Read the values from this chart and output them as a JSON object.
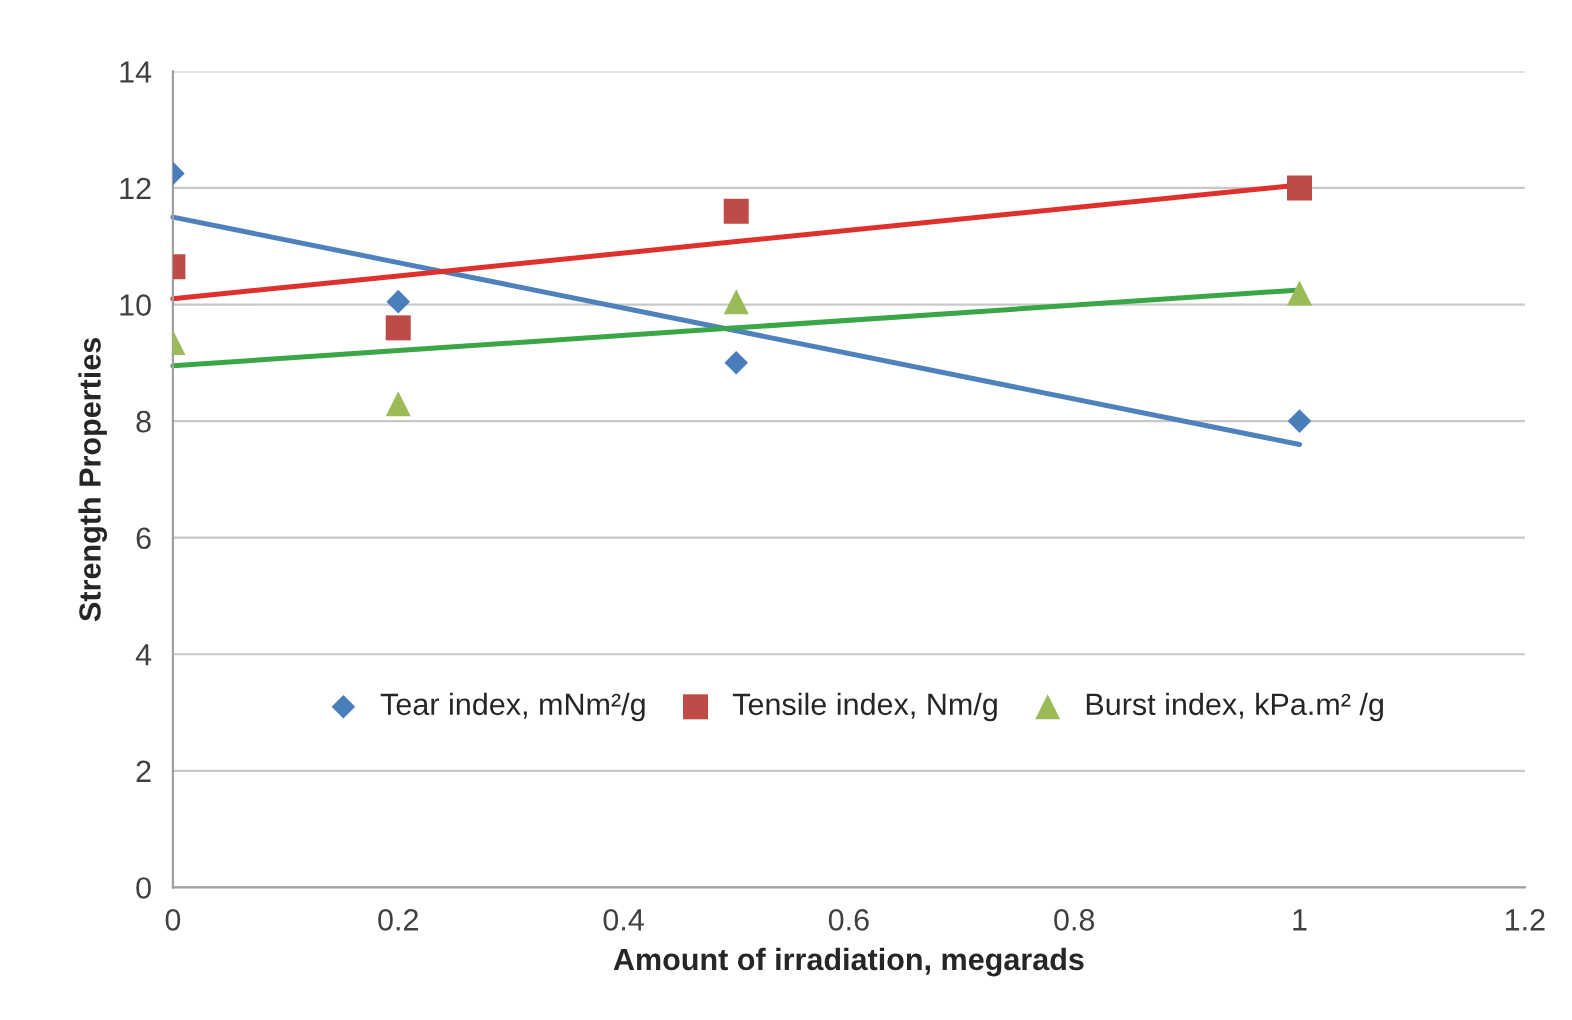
{
  "chart_data": {
    "type": "scatter",
    "xlabel": "Amount of irradiation, megarads",
    "ylabel": "Strength Properties",
    "x": [
      0,
      0.2,
      0.5,
      1
    ],
    "series": [
      {
        "name": "Tear index, mNm²/g",
        "color": "#4a7ebb",
        "marker": "diamond",
        "values": [
          12.25,
          10.05,
          9.0,
          8.0
        ]
      },
      {
        "name": "Tensile index, Nm/g",
        "color": "#be4b48",
        "marker": "square",
        "values": [
          10.65,
          9.6,
          11.6,
          12.0
        ]
      },
      {
        "name": "Burst index, kPa.m² /g",
        "color": "#9bbb59",
        "marker": "triangle",
        "values": [
          9.35,
          8.3,
          10.05,
          10.2
        ]
      },
      {
        "type": "line",
        "color": "#4f81bd",
        "marker": "none",
        "values": [
          11.5,
          10.72,
          9.55,
          7.6
        ]
      },
      {
        "type": "line",
        "color": "#e0302b",
        "marker": "none",
        "values": [
          10.1,
          10.49,
          11.08,
          12.05
        ]
      },
      {
        "type": "line",
        "color": "#3aa648",
        "marker": "none",
        "values": [
          8.95,
          9.21,
          9.6,
          10.25
        ]
      }
    ],
    "xlim": [
      0,
      1.2
    ],
    "xticks": [
      0,
      0.2,
      0.4,
      0.6,
      0.8,
      1,
      1.2
    ],
    "ylim": [
      0,
      14
    ],
    "yticks": [
      0,
      2,
      4,
      6,
      8,
      10,
      12,
      14
    ],
    "grid": "y",
    "legend": "bottom"
  }
}
